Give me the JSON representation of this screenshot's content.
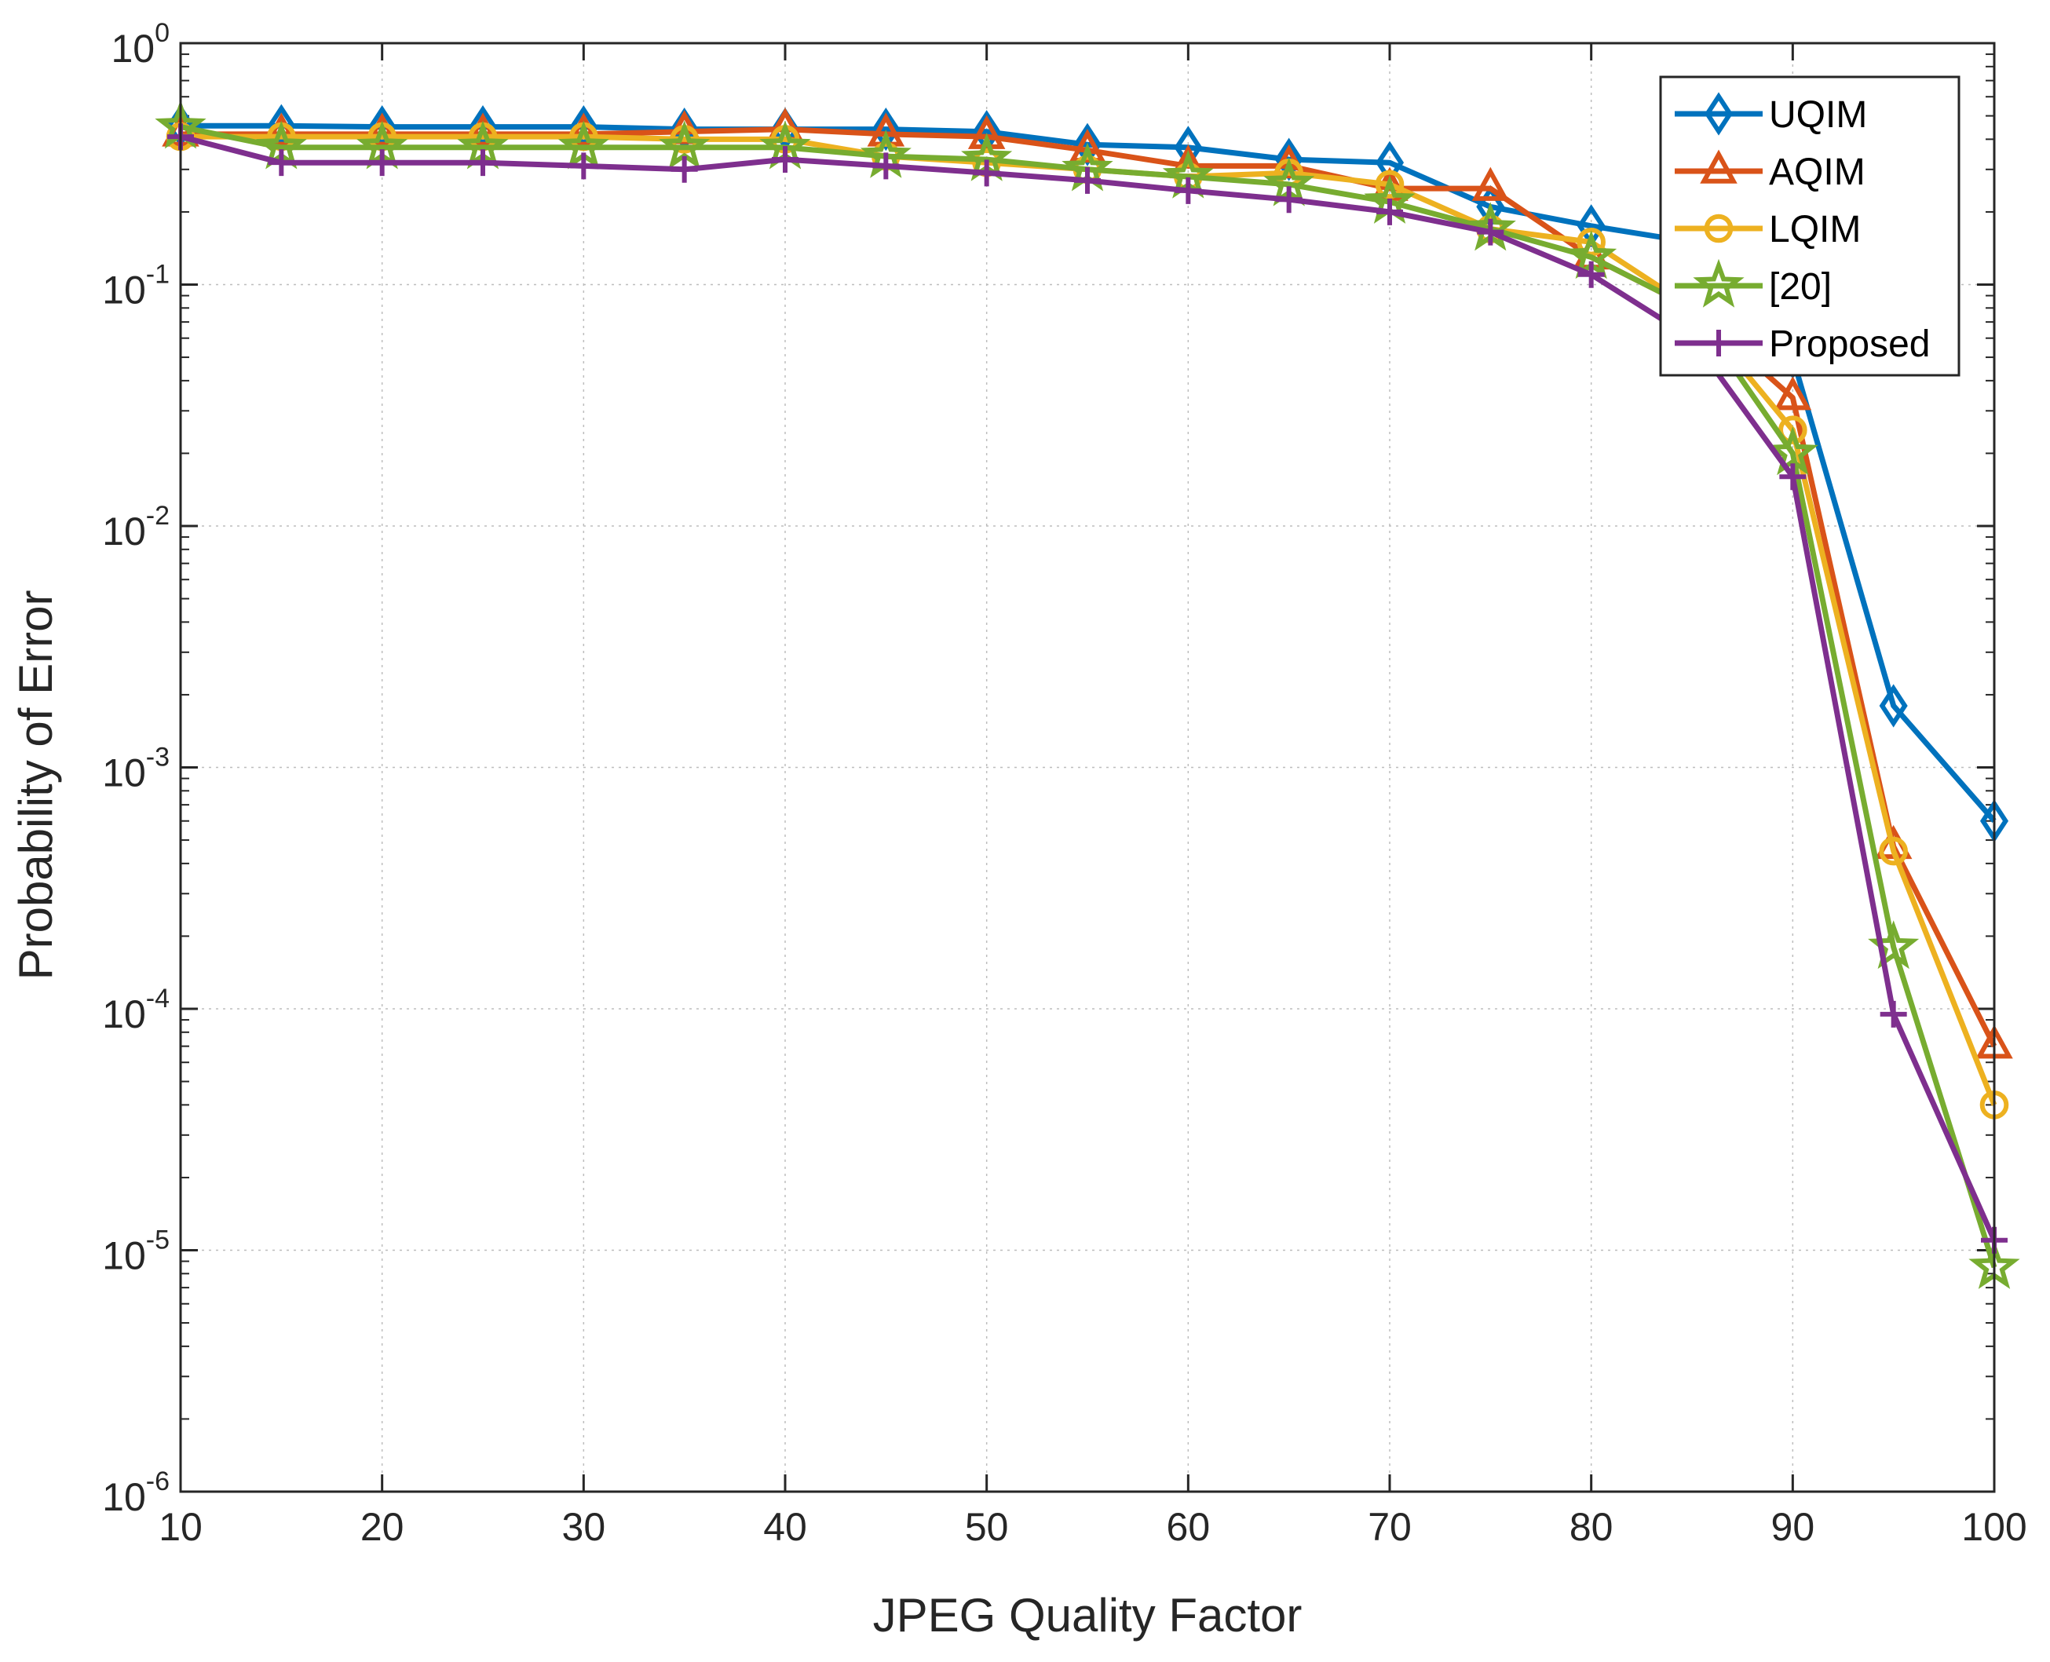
{
  "chart_data": {
    "type": "line",
    "title": "",
    "xlabel": "JPEG Quality Factor",
    "ylabel": "Probability of Error",
    "yscale": "log",
    "xlim": [
      10,
      100
    ],
    "ylim": [
      1e-06,
      1
    ],
    "grid": true,
    "legend_position": "top-right",
    "x_ticks": [
      "10",
      "20",
      "30",
      "40",
      "50",
      "60",
      "70",
      "80",
      "90",
      "100"
    ],
    "y_ticks": [
      {
        "base": "10",
        "exp": "-6",
        "value": 1e-06
      },
      {
        "base": "10",
        "exp": "-5",
        "value": 1e-05
      },
      {
        "base": "10",
        "exp": "-4",
        "value": 0.0001
      },
      {
        "base": "10",
        "exp": "-3",
        "value": 0.001
      },
      {
        "base": "10",
        "exp": "-2",
        "value": 0.01
      },
      {
        "base": "10",
        "exp": "-1",
        "value": 0.1
      },
      {
        "base": "10",
        "exp": "0",
        "value": 1
      }
    ],
    "x": [
      10,
      15,
      20,
      25,
      30,
      35,
      40,
      45,
      50,
      55,
      60,
      65,
      70,
      75,
      80,
      85,
      90,
      95,
      100
    ],
    "series": [
      {
        "name": "UQIM",
        "color": "#0072BD",
        "marker": "diamond",
        "values": [
          0.455,
          0.455,
          0.45,
          0.45,
          0.45,
          0.44,
          0.44,
          0.44,
          0.43,
          0.38,
          0.37,
          0.33,
          0.32,
          0.21,
          0.175,
          0.15,
          0.05,
          0.0018,
          0.0006
        ]
      },
      {
        "name": "AQIM",
        "color": "#D95319",
        "marker": "triangle",
        "values": [
          0.42,
          0.42,
          0.42,
          0.42,
          0.42,
          0.43,
          0.44,
          0.42,
          0.41,
          0.36,
          0.31,
          0.31,
          0.25,
          0.25,
          0.13,
          0.08,
          0.034,
          0.00047,
          7e-05
        ]
      },
      {
        "name": "LQIM",
        "color": "#EDB120",
        "marker": "circle",
        "values": [
          0.41,
          0.41,
          0.41,
          0.41,
          0.41,
          0.4,
          0.4,
          0.34,
          0.32,
          0.3,
          0.28,
          0.29,
          0.26,
          0.17,
          0.15,
          0.08,
          0.025,
          0.00045,
          4e-05
        ]
      },
      {
        "name": "[20]",
        "color": "#77AC30",
        "marker": "star",
        "values": [
          0.45,
          0.37,
          0.37,
          0.37,
          0.37,
          0.37,
          0.37,
          0.34,
          0.33,
          0.3,
          0.28,
          0.26,
          0.22,
          0.17,
          0.13,
          0.08,
          0.02,
          0.00018,
          8.5e-06
        ]
      },
      {
        "name": "Proposed",
        "color": "#7E2F8E",
        "marker": "plus",
        "values": [
          0.41,
          0.32,
          0.32,
          0.32,
          0.31,
          0.3,
          0.33,
          0.31,
          0.29,
          0.27,
          0.245,
          0.225,
          0.2,
          0.165,
          0.11,
          0.06,
          0.016,
          9.5e-05,
          1.1e-05
        ]
      }
    ]
  }
}
